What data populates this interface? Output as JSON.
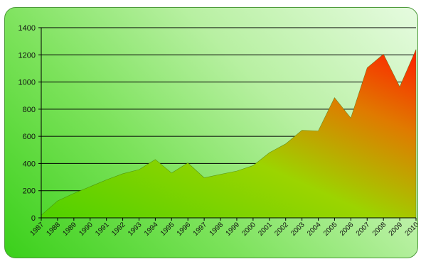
{
  "chart_data": {
    "type": "area",
    "title": "",
    "xlabel": "",
    "ylabel": "",
    "x": [
      "1987",
      "1988",
      "1989",
      "1990",
      "1991",
      "1992",
      "1993",
      "1994",
      "1995",
      "1996",
      "1997",
      "1998",
      "1999",
      "2000",
      "2001",
      "2002",
      "2003",
      "2004",
      "2005",
      "2006",
      "2007",
      "2008",
      "2009",
      "2010"
    ],
    "series": [
      {
        "values": [
          20,
          125,
          180,
          230,
          280,
          325,
          355,
          430,
          330,
          405,
          295,
          320,
          345,
          385,
          480,
          545,
          645,
          640,
          885,
          735,
          1105,
          1205,
          965,
          1240
        ]
      }
    ],
    "ylim": [
      0,
      1400
    ],
    "yticks": [
      0,
      200,
      400,
      600,
      800,
      1000,
      1200,
      1400
    ],
    "grid": true,
    "legend": "none",
    "colors": {
      "area_low": "#7fd400",
      "area_mid": "#e2a100",
      "area_high": "#ff2a00",
      "gridline": "#000000",
      "background_start": "#3ad01a",
      "background_end": "#e6fbe0"
    }
  }
}
